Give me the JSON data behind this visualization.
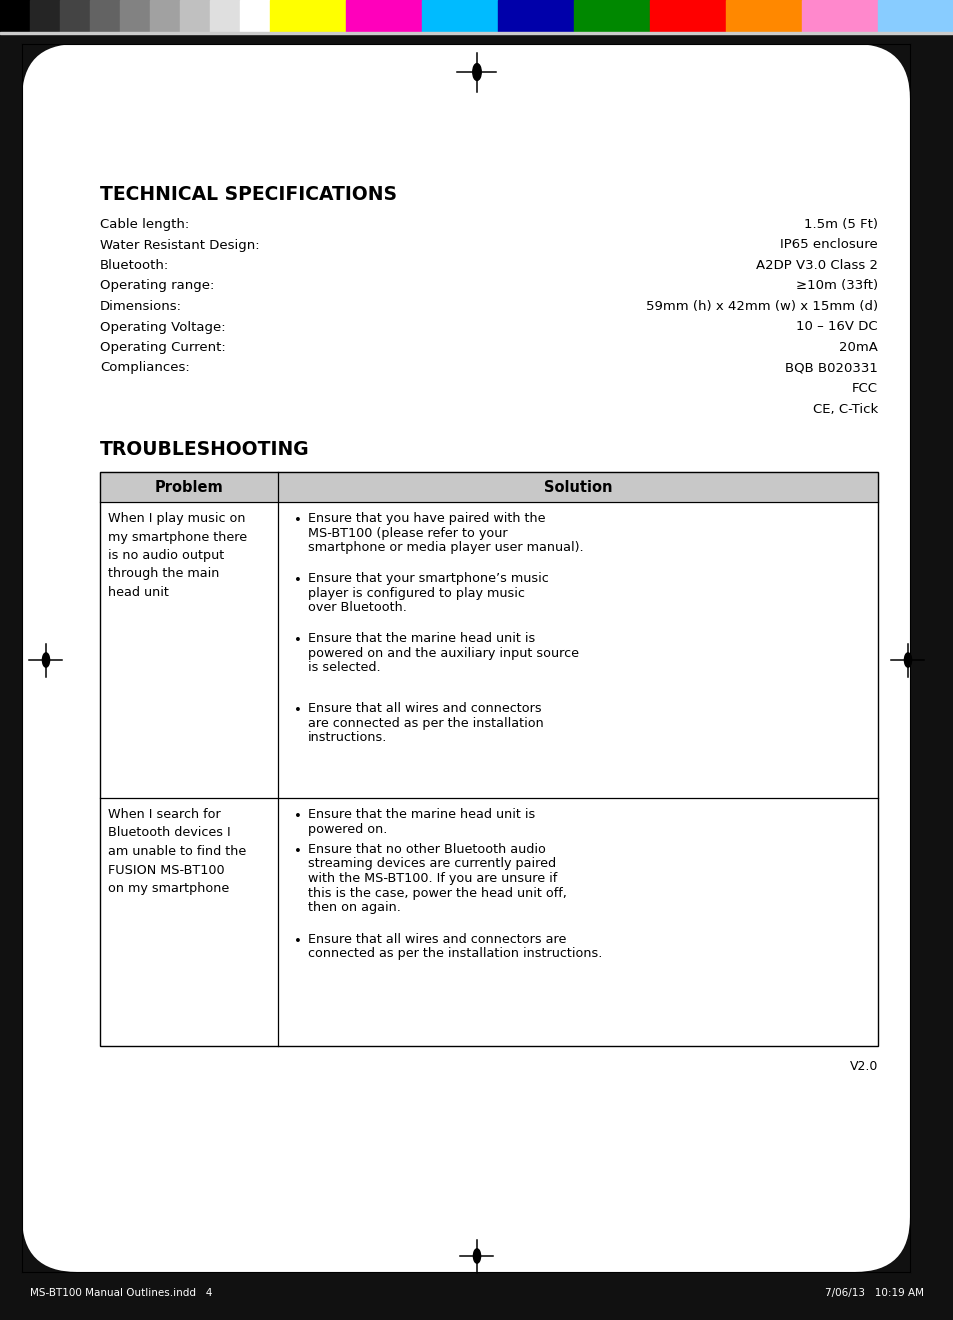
{
  "bg_color": "#ffffff",
  "dark_bg": "#111111",
  "tech_title": "TECHNICAL SPECIFICATIONS",
  "specs": [
    [
      "Cable length:",
      "1.5m (5 Ft)"
    ],
    [
      "Water Resistant Design:",
      "IP65 enclosure"
    ],
    [
      "Bluetooth:",
      "A2DP V3.0 Class 2"
    ],
    [
      "Operating range:",
      "≥10m (33ft)"
    ],
    [
      "Dimensions:",
      "59mm (h) x 42mm (w) x 15mm (d)"
    ],
    [
      "Operating Voltage:",
      "10 – 16V DC"
    ],
    [
      "Operating Current:",
      "20mA"
    ],
    [
      "Compliances:",
      "BQB B020331"
    ],
    [
      "",
      "FCC"
    ],
    [
      "",
      "CE, C-Tick"
    ]
  ],
  "trouble_title": "TROUBLESHOOTING",
  "table_header": [
    "Problem",
    "Solution"
  ],
  "table_row1_problem": "When I play music on\nmy smartphone there\nis no audio output\nthrough the main\nhead unit",
  "table_row1_solutions": [
    "Ensure that you have paired with the\nMS-BT100 (please refer to your\nsmartphone or media player user manual).",
    "Ensure that your smartphone’s music\nplayer is configured to play music\nover Bluetooth.",
    "Ensure that the marine head unit is\npowered on and the auxiliary input source\nis selected.",
    "Ensure that all wires and connectors\nare connected as per the installation\ninstructions."
  ],
  "table_row2_problem": "When I search for\nBluetooth devices I\nam unable to find the\nFUSION MS-BT100\non my smartphone",
  "table_row2_solutions": [
    "Ensure that the marine head unit is\npowered on.",
    "Ensure that no other Bluetooth audio\nstreaming devices are currently paired\nwith the MS-BT100. If you are unsure if\nthis is the case, power the head unit off,\nthen on again.",
    "Ensure that all wires and connectors are\nconnected as per the installation instructions."
  ],
  "version": "V2.0",
  "footer_left": "MS-BT100 Manual Outlines.indd   4",
  "footer_right": "7/06/13   10:19 AM",
  "gray_colors": [
    "#000000",
    "#252525",
    "#444444",
    "#636363",
    "#828282",
    "#a1a1a1",
    "#c0c0c0",
    "#dfdfdf",
    "#ffffff"
  ],
  "color_colors": [
    "#ffff00",
    "#ff00bb",
    "#00bbff",
    "#0000aa",
    "#008800",
    "#ff0000",
    "#ff8800",
    "#ff88cc",
    "#88ccff"
  ]
}
